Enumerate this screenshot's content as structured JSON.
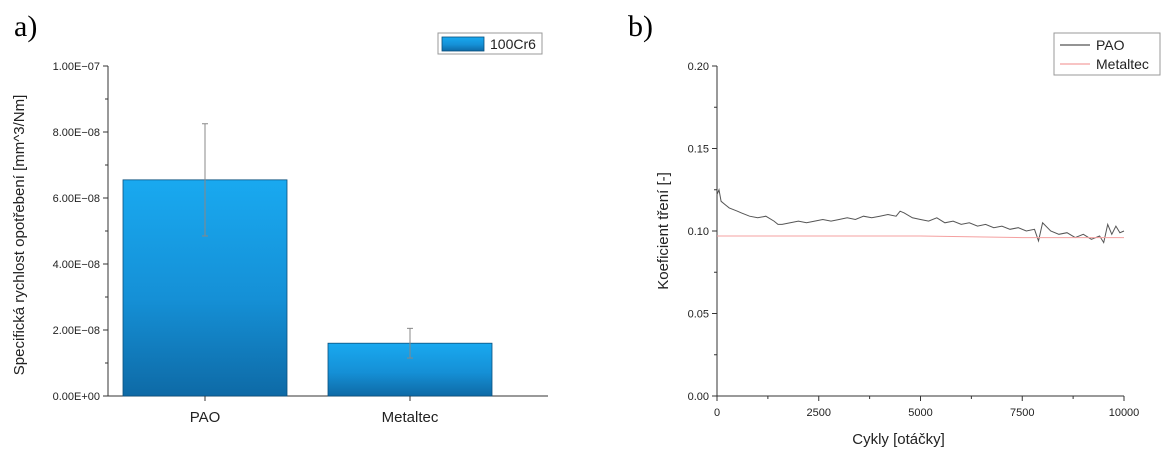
{
  "chart_data": [
    {
      "type": "bar",
      "panel_label": "a)",
      "categories": [
        "PAO",
        "Metaltec"
      ],
      "series": [
        {
          "name": "100Cr6",
          "values": [
            6.55e-08,
            1.6e-08
          ],
          "error": [
            1.7e-08,
            4.5e-09
          ],
          "color": "#1aa7ec"
        }
      ],
      "xlabel": "",
      "ylabel": "Specifická rychlost opotřebení [mm^3/Nm]",
      "ylim": [
        0,
        1e-07
      ],
      "yticks": [
        0,
        2e-08,
        4e-08,
        6e-08,
        8e-08,
        1e-07
      ],
      "ytick_labels": [
        "0.00E+00",
        "2.00E−08",
        "4.00E−08",
        "6.00E−08",
        "8.00E−08",
        "1.00E−07"
      ],
      "legend": "top-right",
      "grid": false
    },
    {
      "type": "line",
      "panel_label": "b)",
      "xlabel": "Cykly [otáčky]",
      "ylabel": "Koeficient tření [-]",
      "xlim": [
        0,
        10000
      ],
      "ylim": [
        0,
        0.2
      ],
      "xticks": [
        0,
        2500,
        5000,
        7500,
        10000
      ],
      "xtick_labels": [
        "0",
        "2500",
        "5000",
        "7500",
        "10000"
      ],
      "yticks": [
        0,
        0.05,
        0.1,
        0.15,
        0.2
      ],
      "ytick_labels": [
        "0.00",
        "0.05",
        "0.10",
        "0.15",
        "0.20"
      ],
      "legend": "top-right",
      "grid": false,
      "series": [
        {
          "name": "PAO",
          "color": "#555555",
          "x": [
            0,
            50,
            100,
            200,
            300,
            400,
            500,
            600,
            800,
            1000,
            1200,
            1400,
            1500,
            1600,
            1800,
            2000,
            2200,
            2400,
            2600,
            2800,
            3000,
            3200,
            3400,
            3600,
            3800,
            4000,
            4200,
            4400,
            4500,
            4600,
            4800,
            5000,
            5200,
            5400,
            5600,
            5800,
            6000,
            6200,
            6400,
            6600,
            6800,
            7000,
            7200,
            7400,
            7600,
            7800,
            7900,
            8000,
            8200,
            8400,
            8600,
            8800,
            9000,
            9200,
            9400,
            9500,
            9600,
            9700,
            9800,
            9900,
            10000
          ],
          "y": [
            0.122,
            0.125,
            0.118,
            0.116,
            0.114,
            0.113,
            0.112,
            0.111,
            0.109,
            0.108,
            0.109,
            0.106,
            0.104,
            0.104,
            0.105,
            0.106,
            0.105,
            0.106,
            0.107,
            0.106,
            0.107,
            0.108,
            0.107,
            0.109,
            0.108,
            0.109,
            0.11,
            0.109,
            0.112,
            0.111,
            0.108,
            0.107,
            0.106,
            0.108,
            0.105,
            0.106,
            0.104,
            0.105,
            0.103,
            0.104,
            0.102,
            0.103,
            0.101,
            0.102,
            0.1,
            0.101,
            0.094,
            0.105,
            0.1,
            0.098,
            0.099,
            0.096,
            0.098,
            0.095,
            0.097,
            0.093,
            0.104,
            0.098,
            0.103,
            0.099,
            0.1
          ]
        },
        {
          "name": "Metaltec",
          "color": "#f4a0a0",
          "x": [
            0,
            2500,
            5000,
            7500,
            10000
          ],
          "y": [
            0.097,
            0.097,
            0.097,
            0.096,
            0.096
          ]
        }
      ]
    }
  ]
}
